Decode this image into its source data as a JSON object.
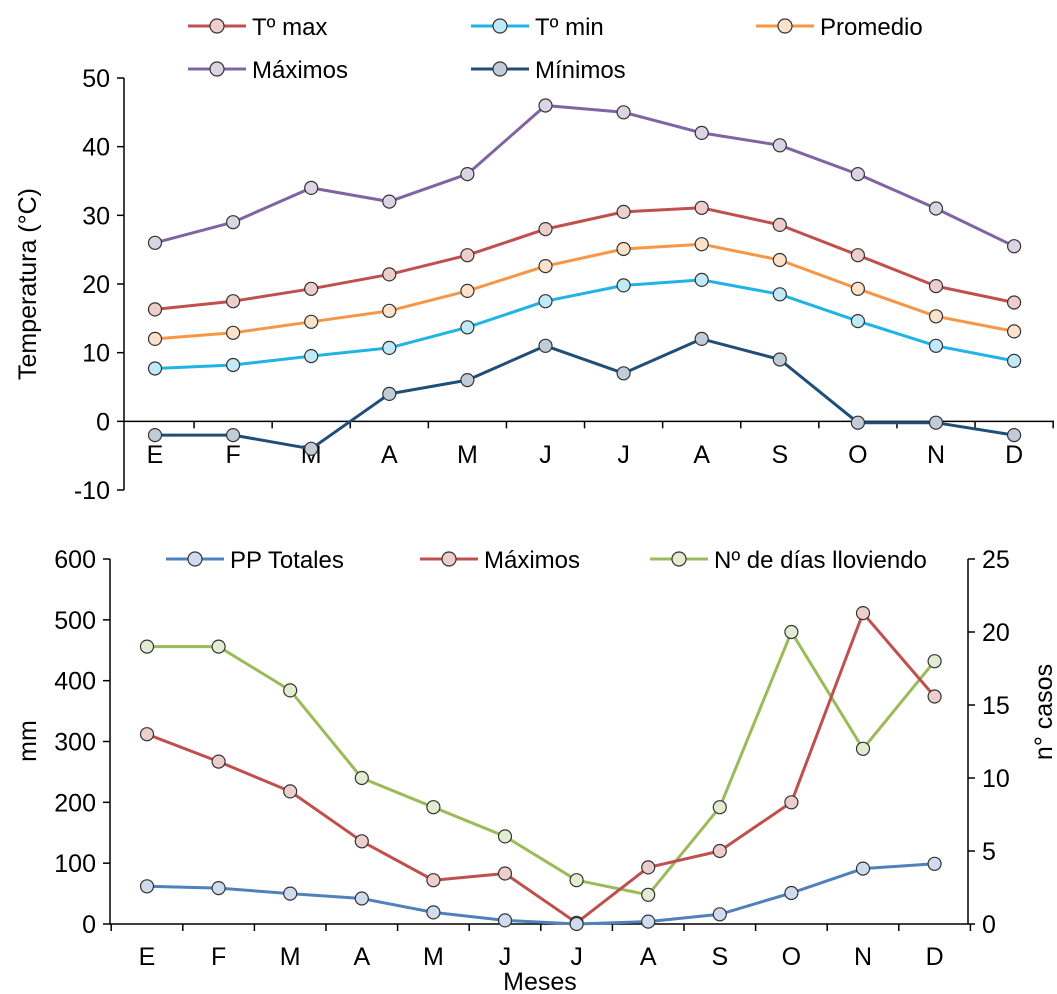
{
  "chart_data": [
    {
      "type": "line",
      "categories": [
        "E",
        "F",
        "M",
        "A",
        "M",
        "J",
        "J",
        "A",
        "S",
        "O",
        "N",
        "D"
      ],
      "ylabel": "Temperatura (°C)",
      "ylim": [
        -10,
        50
      ],
      "yticks": [
        -10,
        0,
        10,
        20,
        30,
        40,
        50
      ],
      "legend_position": "top",
      "series": [
        {
          "name": "Tº max",
          "color": "#c0504d",
          "values": [
            16.3,
            17.5,
            19.3,
            21.4,
            24.2,
            28.0,
            30.5,
            31.1,
            28.6,
            24.2,
            19.7,
            17.3
          ]
        },
        {
          "name": "Tº min",
          "color": "#1fb3e6",
          "values": [
            7.7,
            8.2,
            9.5,
            10.7,
            13.7,
            17.5,
            19.8,
            20.6,
            18.5,
            14.6,
            11.0,
            8.8
          ]
        },
        {
          "name": "Promedio",
          "color": "#f79646",
          "values": [
            12.0,
            12.9,
            14.5,
            16.1,
            19.0,
            22.6,
            25.1,
            25.8,
            23.5,
            19.3,
            15.3,
            13.1
          ]
        },
        {
          "name": "Máximos",
          "color": "#8064a2",
          "values": [
            26,
            29,
            34,
            32,
            36,
            46,
            45,
            42,
            40.2,
            36,
            31,
            25.5
          ]
        },
        {
          "name": "Mínimos",
          "color": "#1f4e79",
          "values": [
            -2,
            -2,
            -4,
            4,
            6,
            11,
            7,
            12,
            9,
            -0.2,
            -0.2,
            -2
          ]
        }
      ]
    },
    {
      "type": "line",
      "categories": [
        "E",
        "F",
        "M",
        "A",
        "M",
        "J",
        "J",
        "A",
        "S",
        "O",
        "N",
        "D"
      ],
      "xlabel": "Meses",
      "ylabel": "mm",
      "ylabel_right": "n° casos",
      "ylim": [
        0,
        600
      ],
      "ylim_right": [
        0,
        25
      ],
      "yticks": [
        0,
        100,
        200,
        300,
        400,
        500,
        600
      ],
      "yticks_right": [
        0,
        5,
        10,
        15,
        20,
        25
      ],
      "legend_position": "top",
      "series": [
        {
          "name": "PP Totales",
          "color": "#4f81bd",
          "axis": "left",
          "values": [
            62,
            59,
            50,
            42,
            19,
            6,
            0,
            4,
            16,
            51,
            91,
            99
          ]
        },
        {
          "name": "Máximos",
          "color": "#c0504d",
          "axis": "left",
          "values": [
            312,
            267,
            218,
            136,
            72,
            83,
            2,
            93,
            120,
            200,
            511,
            374
          ]
        },
        {
          "name": "Nº de días lloviendo",
          "color": "#9bbb59",
          "axis": "right",
          "values": [
            19,
            19,
            16,
            10,
            8,
            6,
            3,
            2,
            8,
            20,
            12,
            18
          ]
        }
      ]
    }
  ]
}
